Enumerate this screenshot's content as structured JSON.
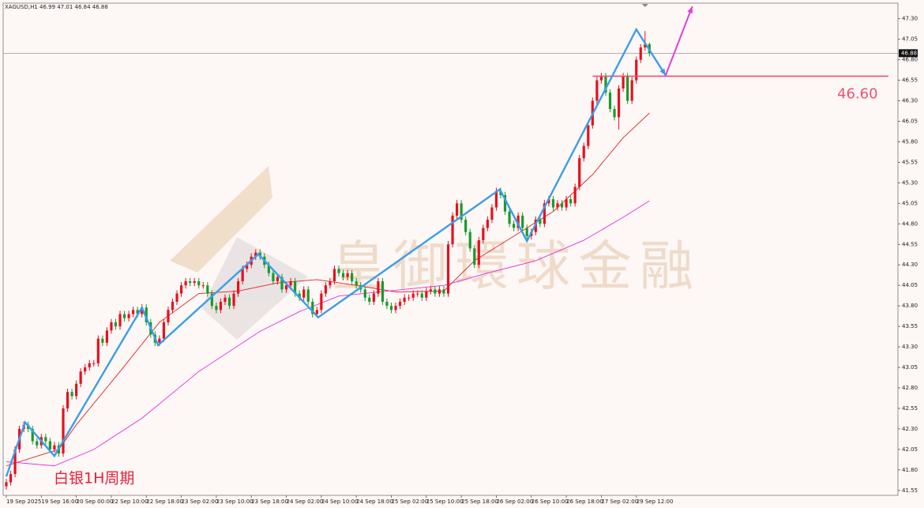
{
  "chart_data": {
    "type": "candlestick",
    "header": "XAGUSD,H1  46.99 47.01 46.84 46.88",
    "caption": "白银1H周期",
    "watermark": "皇御環球金融",
    "up_color": "#e8101c",
    "down_color": "#1a9a2a",
    "xlim": [
      -0.72,
      203.8
    ],
    "ylim": [
      41.49,
      47.49
    ],
    "yticks": [
      {
        "value": 47.3,
        "label": "47.30"
      },
      47.05,
      {
        "value": 46.8,
        "label": "46.80"
      },
      46.55,
      {
        "value": 46.3,
        "label": "46.30"
      },
      46.05,
      {
        "value": 45.8,
        "label": "45.80"
      },
      45.55,
      {
        "value": 45.3,
        "label": "45.30"
      },
      45.05,
      {
        "value": 44.8,
        "label": "44.80"
      },
      44.55,
      {
        "value": 44.3,
        "label": "44.30"
      },
      44.05,
      {
        "value": 43.8,
        "label": "43.80"
      },
      43.55,
      {
        "value": 43.3,
        "label": "43.30"
      },
      43.05,
      {
        "value": 42.8,
        "label": "42.80"
      },
      42.55,
      {
        "value": 42.3,
        "label": "42.30"
      },
      42.05,
      {
        "value": 41.8,
        "label": "41.80"
      },
      41.55
    ],
    "current_price": {
      "value": 46.88,
      "label": "46.88"
    },
    "level": {
      "value": 46.6,
      "label": "46.60",
      "color": "#f0506e"
    },
    "categories": [
      "19 Sep 2025",
      null,
      null,
      null,
      null,
      null,
      null,
      null,
      "19 Sep 16:00",
      null,
      null,
      null,
      null,
      null,
      null,
      null,
      "20 Sep 00:00",
      null,
      null,
      null,
      null,
      null,
      null,
      null,
      "22 Sep 10:00",
      null,
      null,
      null,
      null,
      null,
      null,
      null,
      "22 Sep 18:00",
      null,
      null,
      null,
      null,
      null,
      null,
      null,
      "23 Sep 02:00",
      null,
      null,
      null,
      null,
      null,
      null,
      null,
      "23 Sep 10:00",
      null,
      null,
      null,
      null,
      null,
      null,
      null,
      "23 Sep 18:00",
      null,
      null,
      null,
      null,
      null,
      null,
      null,
      "24 Sep 02:00",
      null,
      null,
      null,
      null,
      null,
      null,
      null,
      "24 Sep 10:00",
      null,
      null,
      null,
      null,
      null,
      null,
      null,
      "24 Sep 18:00",
      null,
      null,
      null,
      null,
      null,
      null,
      null,
      "25 Sep 02:00",
      null,
      null,
      null,
      null,
      null,
      null,
      null,
      "25 Sep 10:00",
      null,
      null,
      null,
      null,
      null,
      null,
      null,
      "25 Sep 18:00",
      null,
      null,
      null,
      null,
      null,
      null,
      null,
      "26 Sep 02:00",
      null,
      null,
      null,
      null,
      null,
      null,
      null,
      "26 Sep 10:00",
      null,
      null,
      null,
      null,
      null,
      null,
      null,
      "26 Sep 18:00",
      null,
      null,
      null,
      null,
      null,
      null,
      null,
      "27 Sep 02:00",
      null,
      null,
      null,
      null,
      null,
      null,
      null,
      "29 Sep 12:00",
      null,
      null,
      null
    ],
    "open": [
      41.6,
      41.65,
      41.75,
      42.05,
      42.3,
      42.35,
      42.3,
      42.15,
      42.1,
      42.2,
      42.15,
      42.05,
      42.1,
      42.0,
      42.55,
      42.75,
      42.7,
      42.85,
      43.0,
      43.05,
      43.1,
      43.1,
      43.4,
      43.35,
      43.5,
      43.6,
      43.55,
      43.7,
      43.65,
      43.7,
      43.75,
      43.7,
      43.78,
      43.6,
      43.45,
      43.35,
      43.4,
      43.6,
      43.75,
      43.85,
      43.95,
      44.05,
      44.1,
      44.08,
      44.1,
      44.05,
      44.05,
      43.95,
      43.8,
      43.75,
      43.85,
      43.9,
      43.8,
      43.95,
      44.1,
      44.25,
      44.3,
      44.4,
      44.45,
      44.4,
      44.3,
      44.2,
      44.1,
      44.15,
      44.0,
      44.05,
      44.1,
      43.95,
      43.9,
      44.0,
      43.85,
      43.7,
      43.75,
      43.95,
      44.05,
      44.1,
      44.25,
      44.2,
      44.15,
      44.2,
      44.1,
      44.05,
      44.0,
      43.9,
      43.85,
      43.95,
      44.1,
      43.85,
      43.8,
      43.75,
      43.8,
      43.85,
      43.9,
      43.9,
      43.95,
      43.95,
      43.9,
      43.98,
      44.0,
      43.95,
      44.0,
      43.95,
      44.55,
      44.9,
      45.05,
      44.85,
      44.7,
      44.5,
      44.3,
      44.6,
      44.75,
      44.85,
      45.0,
      45.2,
      45.15,
      44.95,
      44.8,
      44.75,
      44.9,
      44.75,
      44.65,
      44.7,
      44.85,
      44.8,
      45.05,
      45.1,
      45.0,
      45.05,
      45.0,
      45.1,
      45.05,
      45.25,
      45.6,
      45.75,
      46.0,
      46.3,
      46.55,
      46.6,
      46.4,
      46.2,
      46.1,
      46.45,
      46.6,
      46.3,
      46.55,
      46.8,
      46.95,
      46.99
    ],
    "high": [
      41.69,
      41.79,
      42.09,
      42.34,
      42.39,
      42.39,
      42.34,
      42.19,
      42.24,
      42.24,
      42.19,
      42.14,
      42.14,
      42.59,
      42.79,
      42.79,
      42.89,
      43.04,
      43.09,
      43.14,
      43.14,
      43.44,
      43.44,
      43.54,
      43.64,
      43.64,
      43.74,
      43.74,
      43.74,
      43.79,
      43.79,
      43.82,
      43.82,
      43.64,
      43.49,
      43.44,
      43.64,
      43.79,
      43.89,
      43.99,
      44.09,
      44.14,
      44.14,
      44.14,
      44.14,
      44.09,
      44.09,
      43.99,
      43.84,
      43.89,
      43.94,
      43.94,
      43.99,
      44.14,
      44.29,
      44.34,
      44.44,
      44.49,
      44.49,
      44.44,
      44.34,
      44.24,
      44.19,
      44.19,
      44.09,
      44.14,
      44.14,
      43.99,
      44.04,
      44.04,
      43.89,
      43.79,
      43.99,
      44.09,
      44.14,
      44.29,
      44.29,
      44.24,
      44.24,
      44.24,
      44.14,
      44.09,
      44.04,
      43.94,
      43.99,
      44.14,
      44.14,
      43.89,
      43.84,
      43.84,
      43.89,
      43.94,
      43.94,
      43.99,
      43.99,
      43.99,
      44.02,
      44.04,
      44.04,
      44.04,
      44.04,
      44.59,
      44.94,
      45.09,
      45.09,
      44.89,
      44.74,
      44.54,
      44.64,
      44.79,
      44.89,
      45.04,
      45.24,
      45.24,
      45.19,
      44.99,
      44.84,
      44.94,
      44.94,
      44.79,
      44.74,
      44.89,
      44.89,
      45.09,
      45.14,
      45.14,
      45.09,
      45.09,
      45.14,
      45.14,
      45.29,
      45.64,
      45.79,
      46.04,
      46.34,
      46.59,
      46.64,
      46.64,
      46.44,
      46.24,
      46.49,
      46.64,
      46.64,
      46.59,
      46.84,
      46.99,
      47.15,
      47.01
    ],
    "low": [
      41.56,
      41.61,
      41.71,
      42.01,
      42.26,
      42.26,
      42.11,
      42.06,
      42.06,
      42.11,
      42.01,
      42.01,
      41.96,
      41.96,
      42.51,
      42.66,
      42.66,
      42.81,
      42.96,
      43.01,
      43.06,
      43.06,
      43.31,
      43.31,
      43.46,
      43.51,
      43.51,
      43.61,
      43.61,
      43.66,
      43.66,
      43.66,
      43.56,
      43.41,
      43.31,
      43.31,
      43.36,
      43.56,
      43.71,
      43.81,
      43.91,
      44.01,
      44.04,
      44.04,
      44.01,
      44.01,
      43.91,
      43.76,
      43.71,
      43.71,
      43.81,
      43.76,
      43.76,
      43.91,
      44.06,
      44.21,
      44.26,
      44.36,
      44.36,
      44.26,
      44.16,
      44.06,
      44.06,
      43.96,
      43.96,
      44.01,
      43.91,
      43.86,
      43.86,
      43.81,
      43.66,
      43.66,
      43.71,
      43.91,
      44.01,
      44.06,
      44.16,
      44.11,
      44.11,
      44.06,
      44.01,
      43.96,
      43.86,
      43.81,
      43.81,
      43.91,
      43.81,
      43.76,
      43.71,
      43.71,
      43.76,
      43.81,
      43.86,
      43.86,
      43.91,
      43.86,
      43.86,
      43.94,
      43.91,
      43.91,
      43.91,
      43.91,
      44.51,
      44.86,
      44.81,
      44.66,
      44.46,
      44.26,
      44.26,
      44.56,
      44.71,
      44.81,
      44.96,
      45.11,
      44.91,
      44.76,
      44.71,
      44.71,
      44.71,
      44.61,
      44.61,
      44.66,
      44.76,
      44.76,
      45.01,
      44.96,
      44.96,
      44.96,
      44.96,
      45.01,
      45.01,
      45.21,
      45.56,
      45.71,
      45.96,
      46.26,
      46.51,
      46.36,
      46.16,
      46.06,
      45.95,
      46.41,
      46.26,
      46.26,
      46.51,
      46.76,
      46.91,
      46.84
    ],
    "close": [
      41.65,
      41.75,
      42.05,
      42.3,
      42.35,
      42.3,
      42.15,
      42.1,
      42.2,
      42.15,
      42.05,
      42.1,
      42.0,
      42.55,
      42.75,
      42.7,
      42.85,
      43.0,
      43.05,
      43.1,
      43.1,
      43.4,
      43.35,
      43.5,
      43.6,
      43.55,
      43.7,
      43.65,
      43.7,
      43.75,
      43.7,
      43.78,
      43.6,
      43.45,
      43.35,
      43.4,
      43.6,
      43.75,
      43.85,
      43.95,
      44.05,
      44.1,
      44.08,
      44.1,
      44.05,
      44.05,
      43.95,
      43.8,
      43.75,
      43.85,
      43.9,
      43.8,
      43.95,
      44.1,
      44.25,
      44.3,
      44.4,
      44.45,
      44.4,
      44.3,
      44.2,
      44.1,
      44.15,
      44.0,
      44.05,
      44.1,
      43.95,
      43.9,
      44.0,
      43.85,
      43.7,
      43.75,
      43.95,
      44.05,
      44.1,
      44.25,
      44.2,
      44.15,
      44.2,
      44.1,
      44.05,
      44.0,
      43.9,
      43.85,
      43.95,
      44.1,
      43.85,
      43.8,
      43.75,
      43.8,
      43.85,
      43.9,
      43.9,
      43.95,
      43.95,
      43.9,
      43.98,
      44.0,
      43.95,
      44.0,
      43.95,
      44.55,
      44.9,
      45.05,
      44.85,
      44.7,
      44.5,
      44.3,
      44.6,
      44.75,
      44.85,
      45.0,
      45.2,
      45.15,
      44.95,
      44.8,
      44.75,
      44.9,
      44.75,
      44.65,
      44.7,
      44.85,
      44.8,
      45.05,
      45.1,
      45.0,
      45.05,
      45.0,
      45.1,
      45.05,
      45.25,
      45.6,
      45.75,
      46.0,
      46.3,
      46.55,
      46.6,
      46.4,
      46.2,
      46.1,
      46.45,
      46.6,
      46.3,
      46.55,
      46.8,
      46.95,
      46.99,
      46.88
    ],
    "lines": [
      {
        "color": "#e02424",
        "x": [
          0,
          12,
          16,
          26,
          35,
          44,
          53,
          62,
          71,
          80,
          89,
          100,
          107,
          116,
          125,
          134,
          141,
          147
        ],
        "values": [
          41.85,
          42.05,
          42.35,
          43.0,
          43.6,
          43.95,
          43.98,
          44.08,
          44.12,
          44.05,
          43.97,
          43.98,
          44.35,
          44.65,
          44.95,
          45.4,
          45.85,
          46.15
        ]
      },
      {
        "color": "#e030e0",
        "x": [
          0,
          11,
          20,
          31,
          44,
          58,
          67,
          76,
          89,
          100,
          110,
          121,
          132,
          141,
          147
        ],
        "values": [
          41.9,
          41.85,
          42.05,
          42.43,
          43.0,
          43.49,
          43.73,
          43.92,
          43.99,
          44.05,
          44.2,
          44.35,
          44.6,
          44.88,
          45.08
        ]
      }
    ],
    "zigzag": {
      "color": "#3a9ee8",
      "x": [
        0,
        4.3,
        11,
        31,
        34.7,
        57.6,
        71.3,
        112.8,
        119,
        144,
        150.7
      ],
      "values": [
        41.72,
        42.38,
        41.97,
        43.78,
        43.32,
        44.43,
        43.66,
        45.22,
        44.59,
        47.17,
        46.61
      ]
    },
    "arrow": {
      "color": "#e040d8",
      "x": [
        150.7,
        156.8
      ],
      "values": [
        46.61,
        47.45
      ]
    }
  }
}
